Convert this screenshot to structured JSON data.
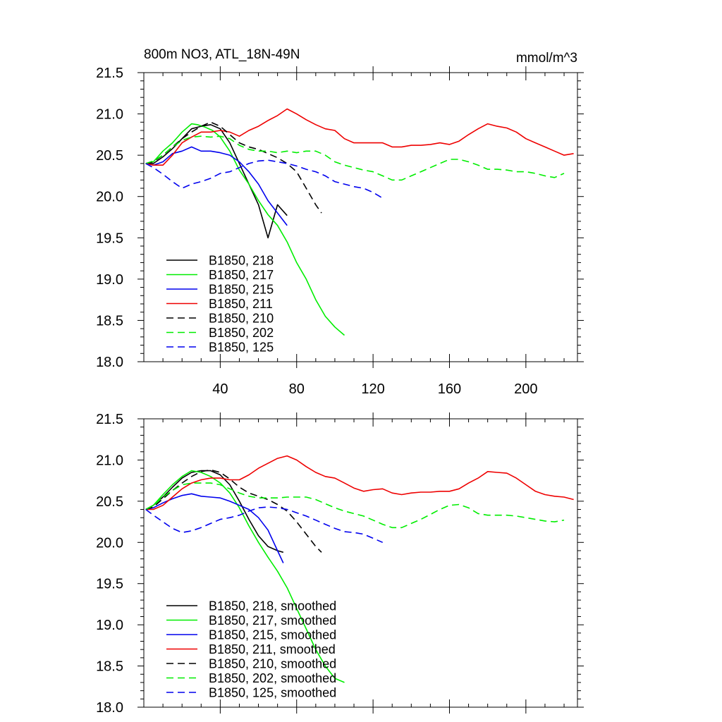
{
  "chart_data": [
    {
      "type": "line",
      "title": "800m NO3, ATL_18N-49N",
      "units": "mmol/m^3",
      "xlabel": "",
      "ylabel": "",
      "xlim": [
        0,
        227
      ],
      "ylim": [
        18.0,
        21.5
      ],
      "x_ticks": [
        40,
        80,
        120,
        160,
        200
      ],
      "y_ticks": [
        18.0,
        18.5,
        19.0,
        19.5,
        20.0,
        20.5,
        21.0,
        21.5
      ],
      "y_tick_labels": [
        "18.0",
        "18.5",
        "19.0",
        "19.5",
        "20.0",
        "20.5",
        "21.0",
        "21.5"
      ],
      "show_x_tick_labels": true,
      "grid": false,
      "legend_position": "bottom-left",
      "series": [
        {
          "name": "B1850, 218",
          "color": "#000000",
          "dash": "solid",
          "x": [
            1,
            5,
            10,
            15,
            20,
            25,
            30,
            35,
            40,
            45,
            50,
            55,
            60,
            65,
            70,
            75
          ],
          "y": [
            20.4,
            20.4,
            20.48,
            20.58,
            20.7,
            20.82,
            20.85,
            20.87,
            20.82,
            20.65,
            20.4,
            20.15,
            19.9,
            19.5,
            19.9,
            19.77
          ]
        },
        {
          "name": "B1850, 217",
          "color": "#00ee00",
          "dash": "solid",
          "x": [
            1,
            5,
            10,
            15,
            20,
            25,
            28,
            32,
            36,
            40,
            45,
            50,
            55,
            60,
            65,
            70,
            75,
            80,
            85,
            90,
            95,
            100,
            105
          ],
          "y": [
            20.4,
            20.42,
            20.55,
            20.65,
            20.78,
            20.88,
            20.87,
            20.84,
            20.8,
            20.72,
            20.55,
            20.32,
            20.15,
            19.95,
            19.78,
            19.65,
            19.45,
            19.2,
            19.0,
            18.75,
            18.55,
            18.42,
            18.32
          ]
        },
        {
          "name": "B1850, 215",
          "color": "#0000ee",
          "dash": "solid",
          "x": [
            1,
            5,
            10,
            15,
            20,
            25,
            30,
            35,
            40,
            45,
            50,
            55,
            60,
            65,
            70,
            75
          ],
          "y": [
            20.4,
            20.38,
            20.42,
            20.52,
            20.55,
            20.6,
            20.55,
            20.55,
            20.53,
            20.5,
            20.42,
            20.3,
            20.15,
            19.95,
            19.8,
            19.65
          ]
        },
        {
          "name": "B1850, 211",
          "color": "#ee0000",
          "dash": "solid",
          "x": [
            1,
            5,
            10,
            15,
            20,
            25,
            30,
            35,
            40,
            45,
            50,
            55,
            60,
            65,
            70,
            75,
            80,
            85,
            90,
            95,
            100,
            105,
            110,
            115,
            120,
            125,
            130,
            135,
            140,
            145,
            150,
            155,
            160,
            165,
            170,
            175,
            180,
            185,
            190,
            195,
            200,
            205,
            210,
            215,
            220,
            225
          ],
          "y": [
            20.4,
            20.38,
            20.38,
            20.5,
            20.65,
            20.72,
            20.78,
            20.78,
            20.8,
            20.78,
            20.73,
            20.8,
            20.85,
            20.92,
            20.98,
            21.06,
            21.0,
            20.93,
            20.87,
            20.82,
            20.8,
            20.7,
            20.65,
            20.65,
            20.65,
            20.65,
            20.6,
            20.6,
            20.62,
            20.62,
            20.63,
            20.65,
            20.63,
            20.67,
            20.75,
            20.82,
            20.88,
            20.85,
            20.83,
            20.78,
            20.7,
            20.65,
            20.6,
            20.55,
            20.5,
            20.52
          ]
        },
        {
          "name": "B1850, 210",
          "color": "#000000",
          "dash": "dashed",
          "x": [
            1,
            5,
            10,
            15,
            20,
            25,
            30,
            35,
            40,
            45,
            50,
            55,
            60,
            65,
            70,
            75,
            80,
            85,
            90,
            93
          ],
          "y": [
            20.4,
            20.42,
            20.5,
            20.6,
            20.7,
            20.78,
            20.85,
            20.9,
            20.85,
            20.75,
            20.65,
            20.6,
            20.57,
            20.52,
            20.47,
            20.4,
            20.3,
            20.1,
            19.9,
            19.8
          ]
        },
        {
          "name": "B1850, 202",
          "color": "#00ee00",
          "dash": "dashed",
          "x": [
            1,
            5,
            10,
            15,
            20,
            25,
            30,
            35,
            40,
            45,
            50,
            55,
            60,
            65,
            70,
            75,
            80,
            85,
            90,
            95,
            100,
            105,
            110,
            115,
            120,
            125,
            130,
            135,
            140,
            145,
            150,
            155,
            160,
            165,
            170,
            175,
            180,
            185,
            190,
            195,
            200,
            205,
            210,
            215,
            220
          ],
          "y": [
            20.4,
            20.43,
            20.5,
            20.6,
            20.68,
            20.72,
            20.73,
            20.72,
            20.73,
            20.7,
            20.62,
            20.57,
            20.55,
            20.55,
            20.53,
            20.55,
            20.53,
            20.55,
            20.55,
            20.5,
            20.42,
            20.38,
            20.35,
            20.32,
            20.3,
            20.25,
            20.2,
            20.2,
            20.25,
            20.3,
            20.35,
            20.4,
            20.45,
            20.45,
            20.42,
            20.38,
            20.33,
            20.33,
            20.32,
            20.3,
            20.3,
            20.28,
            20.25,
            20.23,
            20.28
          ]
        },
        {
          "name": "B1850, 125",
          "color": "#0000ee",
          "dash": "dashed",
          "x": [
            1,
            5,
            10,
            15,
            20,
            25,
            30,
            35,
            40,
            45,
            50,
            55,
            60,
            65,
            70,
            75,
            80,
            85,
            90,
            95,
            100,
            105,
            110,
            115,
            120,
            125
          ],
          "y": [
            20.4,
            20.35,
            20.27,
            20.18,
            20.1,
            20.15,
            20.18,
            20.22,
            20.28,
            20.3,
            20.35,
            20.4,
            20.43,
            20.44,
            20.42,
            20.4,
            20.37,
            20.33,
            20.3,
            20.25,
            20.18,
            20.15,
            20.12,
            20.1,
            20.05,
            19.98
          ]
        }
      ]
    },
    {
      "type": "line",
      "title": "",
      "xlabel": "",
      "ylabel": "",
      "xlim": [
        0,
        227
      ],
      "ylim": [
        18.0,
        21.5
      ],
      "x_ticks": [
        40,
        80,
        120,
        160,
        200
      ],
      "y_ticks": [
        18.0,
        18.5,
        19.0,
        19.5,
        20.0,
        20.5,
        21.0,
        21.5
      ],
      "y_tick_labels": [
        "18.0",
        "18.5",
        "19.0",
        "19.5",
        "20.0",
        "20.5",
        "21.0",
        "21.5"
      ],
      "show_x_tick_labels": false,
      "grid": false,
      "legend_position": "bottom-left",
      "series": [
        {
          "name": "B1850, 218, smoothed",
          "color": "#000000",
          "dash": "solid",
          "x": [
            1,
            5,
            10,
            15,
            20,
            25,
            30,
            35,
            40,
            45,
            50,
            55,
            60,
            65,
            70,
            73
          ],
          "y": [
            20.4,
            20.45,
            20.55,
            20.67,
            20.78,
            20.85,
            20.87,
            20.87,
            20.82,
            20.7,
            20.5,
            20.28,
            20.08,
            19.95,
            19.9,
            19.88
          ]
        },
        {
          "name": "B1850, 217, smoothed",
          "color": "#00ee00",
          "dash": "solid",
          "x": [
            1,
            5,
            10,
            15,
            20,
            25,
            30,
            35,
            40,
            45,
            50,
            55,
            60,
            65,
            70,
            75,
            80,
            85,
            90,
            95,
            100,
            105
          ],
          "y": [
            20.4,
            20.45,
            20.58,
            20.7,
            20.8,
            20.87,
            20.85,
            20.8,
            20.72,
            20.6,
            20.42,
            20.2,
            20.0,
            19.82,
            19.65,
            19.45,
            19.2,
            18.95,
            18.7,
            18.5,
            18.35,
            18.3
          ]
        },
        {
          "name": "B1850, 215, smoothed",
          "color": "#0000ee",
          "dash": "solid",
          "x": [
            1,
            5,
            10,
            15,
            20,
            25,
            30,
            35,
            40,
            45,
            50,
            55,
            60,
            65,
            70,
            73
          ],
          "y": [
            20.4,
            20.42,
            20.48,
            20.53,
            20.57,
            20.59,
            20.56,
            20.55,
            20.54,
            20.5,
            20.45,
            20.4,
            20.3,
            20.15,
            19.9,
            19.75
          ]
        },
        {
          "name": "B1850, 211, smoothed",
          "color": "#ee0000",
          "dash": "solid",
          "x": [
            1,
            5,
            10,
            15,
            20,
            25,
            30,
            35,
            40,
            45,
            50,
            55,
            60,
            65,
            70,
            75,
            80,
            85,
            90,
            95,
            100,
            105,
            110,
            115,
            120,
            125,
            130,
            135,
            140,
            145,
            150,
            155,
            160,
            165,
            170,
            175,
            180,
            185,
            190,
            195,
            200,
            205,
            210,
            215,
            220,
            225
          ],
          "y": [
            20.4,
            20.4,
            20.45,
            20.55,
            20.65,
            20.72,
            20.76,
            20.78,
            20.78,
            20.76,
            20.76,
            20.82,
            20.9,
            20.96,
            21.02,
            21.05,
            21.0,
            20.92,
            20.85,
            20.8,
            20.78,
            20.72,
            20.66,
            20.62,
            20.64,
            20.65,
            20.6,
            20.58,
            20.6,
            20.61,
            20.61,
            20.62,
            20.62,
            20.65,
            20.72,
            20.78,
            20.86,
            20.85,
            20.84,
            20.78,
            20.7,
            20.62,
            20.58,
            20.56,
            20.55,
            20.52
          ]
        },
        {
          "name": "B1850, 210, smoothed",
          "color": "#000000",
          "dash": "dashed",
          "x": [
            1,
            5,
            10,
            15,
            20,
            25,
            30,
            35,
            40,
            45,
            50,
            55,
            60,
            65,
            70,
            75,
            80,
            85,
            90,
            93
          ],
          "y": [
            20.4,
            20.43,
            20.53,
            20.63,
            20.72,
            20.8,
            20.86,
            20.88,
            20.85,
            20.77,
            20.67,
            20.6,
            20.56,
            20.52,
            20.46,
            20.38,
            20.25,
            20.1,
            19.95,
            19.88
          ]
        },
        {
          "name": "B1850, 202, smoothed",
          "color": "#00ee00",
          "dash": "dashed",
          "x": [
            1,
            5,
            10,
            15,
            20,
            25,
            30,
            35,
            40,
            45,
            50,
            55,
            60,
            65,
            70,
            75,
            80,
            85,
            90,
            95,
            100,
            105,
            110,
            115,
            120,
            125,
            130,
            135,
            140,
            145,
            150,
            155,
            160,
            165,
            170,
            175,
            180,
            185,
            190,
            195,
            200,
            205,
            210,
            215,
            220
          ],
          "y": [
            20.4,
            20.45,
            20.55,
            20.63,
            20.7,
            20.72,
            20.72,
            20.72,
            20.7,
            20.65,
            20.6,
            20.56,
            20.54,
            20.54,
            20.54,
            20.55,
            20.55,
            20.55,
            20.52,
            20.47,
            20.42,
            20.38,
            20.35,
            20.32,
            20.27,
            20.22,
            20.18,
            20.18,
            20.23,
            20.28,
            20.34,
            20.4,
            20.45,
            20.46,
            20.42,
            20.35,
            20.33,
            20.33,
            20.33,
            20.32,
            20.3,
            20.28,
            20.26,
            20.25,
            20.27
          ]
        },
        {
          "name": "B1850, 125, smoothed",
          "color": "#0000ee",
          "dash": "dashed",
          "x": [
            1,
            5,
            10,
            15,
            20,
            25,
            30,
            35,
            40,
            45,
            50,
            55,
            60,
            65,
            70,
            75,
            80,
            85,
            90,
            95,
            100,
            105,
            110,
            115,
            120,
            125
          ],
          "y": [
            20.4,
            20.33,
            20.25,
            20.17,
            20.12,
            20.14,
            20.18,
            20.23,
            20.28,
            20.3,
            20.33,
            20.38,
            20.42,
            20.43,
            20.42,
            20.4,
            20.36,
            20.32,
            20.27,
            20.22,
            20.17,
            20.13,
            20.12,
            20.1,
            20.05,
            20.0
          ]
        }
      ]
    }
  ]
}
